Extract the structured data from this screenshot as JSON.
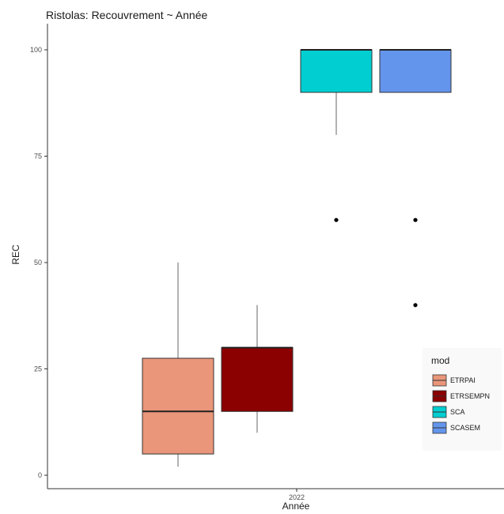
{
  "chart_data": {
    "type": "boxplot",
    "title": "Ristolas: Recouvrement ~ Année",
    "xlabel": "Année",
    "ylabel": "REC",
    "categories": [
      "2022"
    ],
    "ylim": [
      0,
      100
    ],
    "yticks": [
      0,
      25,
      50,
      75,
      100
    ],
    "grid": false,
    "legend": {
      "title": "mod",
      "position": "right"
    },
    "series": [
      {
        "name": "ETRPAI",
        "color": "#E9967A",
        "whisker_low": 2,
        "q1": 5,
        "median": 15,
        "q3": 27.5,
        "whisker_high": 50,
        "outliers": []
      },
      {
        "name": "ETRSEMPN",
        "color": "#8B0000",
        "whisker_low": 10,
        "q1": 15,
        "median": 30,
        "q3": 30,
        "whisker_high": 40,
        "outliers": []
      },
      {
        "name": "SCA",
        "color": "#00CED1",
        "whisker_low": 80,
        "q1": 90,
        "median": 100,
        "q3": 100,
        "whisker_high": 100,
        "outliers": [
          60
        ]
      },
      {
        "name": "SCASEM",
        "color": "#6495ED",
        "whisker_low": 90,
        "q1": 90,
        "median": 100,
        "q3": 100,
        "whisker_high": 100,
        "outliers": [
          60,
          40
        ]
      }
    ]
  }
}
